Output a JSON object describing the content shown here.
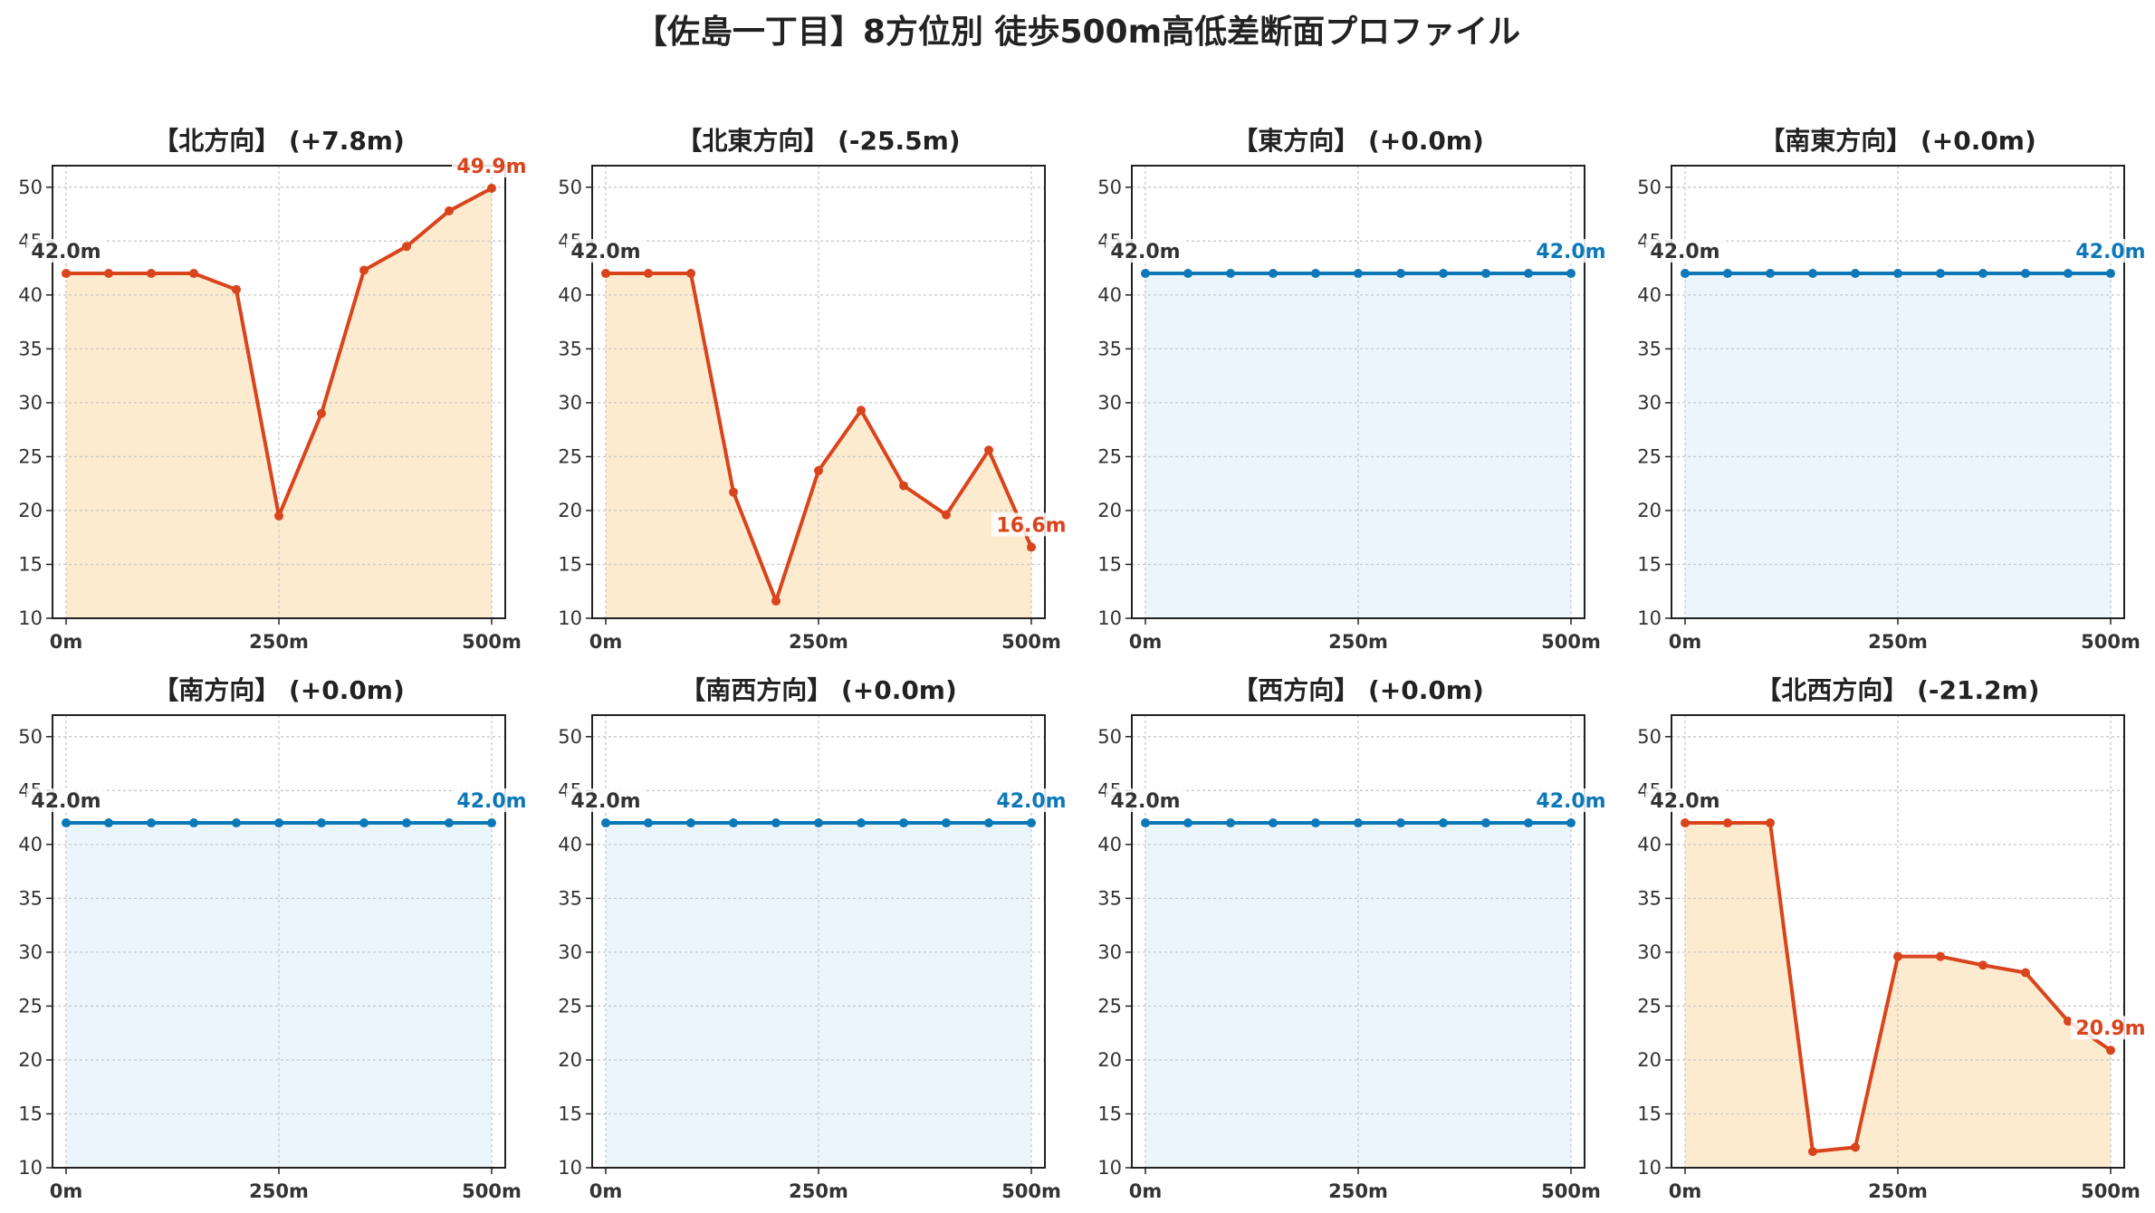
{
  "title": "【佐島一丁目】8方位別 徒歩500m高低差断面プロファイル",
  "colors": {
    "down_line": "#d9441c",
    "down_fill": "#fdebd0",
    "flat_line": "#0d78b8",
    "flat_fill": "#eaf6fc",
    "start_label": "#333333",
    "grid": "#c8c8c8"
  },
  "chart_data": [
    {
      "type": "area",
      "title": "【北方向】 (+7.8m)",
      "direction": "北",
      "x": [
        0,
        50,
        100,
        150,
        200,
        250,
        300,
        350,
        400,
        450,
        500
      ],
      "y": [
        42.0,
        42.0,
        42.0,
        42.0,
        40.5,
        19.5,
        29.0,
        42.3,
        44.5,
        47.8,
        49.9
      ],
      "xticks": [
        "0m",
        "250m",
        "500m"
      ],
      "yticks": [
        10,
        15,
        20,
        25,
        30,
        35,
        40,
        45,
        50
      ],
      "ylim": [
        10,
        52
      ],
      "start_label": "42.0m",
      "end_label": "49.9m",
      "style": "orange",
      "grid": true
    },
    {
      "type": "area",
      "title": "【北東方向】 (-25.5m)",
      "direction": "北東",
      "x": [
        0,
        50,
        100,
        150,
        200,
        250,
        300,
        350,
        400,
        450,
        500
      ],
      "y": [
        42.0,
        42.0,
        42.0,
        21.7,
        11.6,
        23.7,
        29.3,
        22.3,
        19.6,
        25.6,
        16.6
      ],
      "xticks": [
        "0m",
        "250m",
        "500m"
      ],
      "yticks": [
        10,
        15,
        20,
        25,
        30,
        35,
        40,
        45,
        50
      ],
      "ylim": [
        10,
        52
      ],
      "start_label": "42.0m",
      "end_label": "16.6m",
      "style": "orange",
      "grid": true
    },
    {
      "type": "area",
      "title": "【東方向】 (+0.0m)",
      "direction": "東",
      "x": [
        0,
        50,
        100,
        150,
        200,
        250,
        300,
        350,
        400,
        450,
        500
      ],
      "y": [
        42.0,
        42.0,
        42.0,
        42.0,
        42.0,
        42.0,
        42.0,
        42.0,
        42.0,
        42.0,
        42.0
      ],
      "xticks": [
        "0m",
        "250m",
        "500m"
      ],
      "yticks": [
        10,
        15,
        20,
        25,
        30,
        35,
        40,
        45,
        50
      ],
      "ylim": [
        10,
        52
      ],
      "start_label": "42.0m",
      "end_label": "42.0m",
      "style": "blue",
      "grid": true
    },
    {
      "type": "area",
      "title": "【南東方向】 (+0.0m)",
      "direction": "南東",
      "x": [
        0,
        50,
        100,
        150,
        200,
        250,
        300,
        350,
        400,
        450,
        500
      ],
      "y": [
        42.0,
        42.0,
        42.0,
        42.0,
        42.0,
        42.0,
        42.0,
        42.0,
        42.0,
        42.0,
        42.0
      ],
      "xticks": [
        "0m",
        "250m",
        "500m"
      ],
      "yticks": [
        10,
        15,
        20,
        25,
        30,
        35,
        40,
        45,
        50
      ],
      "ylim": [
        10,
        52
      ],
      "start_label": "42.0m",
      "end_label": "42.0m",
      "style": "blue",
      "grid": true
    },
    {
      "type": "area",
      "title": "【南方向】 (+0.0m)",
      "direction": "南",
      "x": [
        0,
        50,
        100,
        150,
        200,
        250,
        300,
        350,
        400,
        450,
        500
      ],
      "y": [
        42.0,
        42.0,
        42.0,
        42.0,
        42.0,
        42.0,
        42.0,
        42.0,
        42.0,
        42.0,
        42.0
      ],
      "xticks": [
        "0m",
        "250m",
        "500m"
      ],
      "yticks": [
        10,
        15,
        20,
        25,
        30,
        35,
        40,
        45,
        50
      ],
      "ylim": [
        10,
        52
      ],
      "start_label": "42.0m",
      "end_label": "42.0m",
      "style": "blue",
      "grid": true
    },
    {
      "type": "area",
      "title": "【南西方向】 (+0.0m)",
      "direction": "南西",
      "x": [
        0,
        50,
        100,
        150,
        200,
        250,
        300,
        350,
        400,
        450,
        500
      ],
      "y": [
        42.0,
        42.0,
        42.0,
        42.0,
        42.0,
        42.0,
        42.0,
        42.0,
        42.0,
        42.0,
        42.0
      ],
      "xticks": [
        "0m",
        "250m",
        "500m"
      ],
      "yticks": [
        10,
        15,
        20,
        25,
        30,
        35,
        40,
        45,
        50
      ],
      "ylim": [
        10,
        52
      ],
      "start_label": "42.0m",
      "end_label": "42.0m",
      "style": "blue",
      "grid": true
    },
    {
      "type": "area",
      "title": "【西方向】 (+0.0m)",
      "direction": "西",
      "x": [
        0,
        50,
        100,
        150,
        200,
        250,
        300,
        350,
        400,
        450,
        500
      ],
      "y": [
        42.0,
        42.0,
        42.0,
        42.0,
        42.0,
        42.0,
        42.0,
        42.0,
        42.0,
        42.0,
        42.0
      ],
      "xticks": [
        "0m",
        "250m",
        "500m"
      ],
      "yticks": [
        10,
        15,
        20,
        25,
        30,
        35,
        40,
        45,
        50
      ],
      "ylim": [
        10,
        52
      ],
      "start_label": "42.0m",
      "end_label": "42.0m",
      "style": "blue",
      "grid": true
    },
    {
      "type": "area",
      "title": "【北西方向】 (-21.2m)",
      "direction": "北西",
      "x": [
        0,
        50,
        100,
        150,
        200,
        250,
        300,
        350,
        400,
        450,
        500
      ],
      "y": [
        42.0,
        42.0,
        42.0,
        11.5,
        11.9,
        29.6,
        29.6,
        28.8,
        28.1,
        23.6,
        20.9
      ],
      "xticks": [
        "0m",
        "250m",
        "500m"
      ],
      "yticks": [
        10,
        15,
        20,
        25,
        30,
        35,
        40,
        45,
        50
      ],
      "ylim": [
        10,
        52
      ],
      "start_label": "42.0m",
      "end_label": "20.9m",
      "style": "orange",
      "grid": true
    }
  ]
}
